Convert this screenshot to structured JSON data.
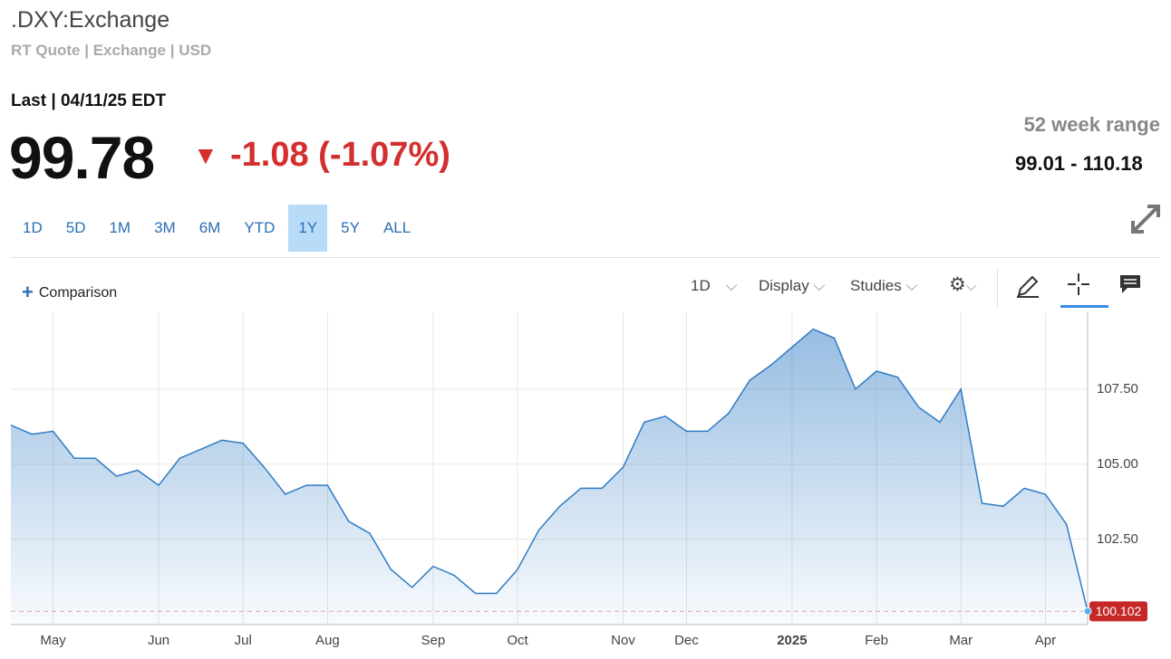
{
  "header": {
    "symbol": ".DXY:Exchange",
    "subtitle": "RT Quote | Exchange | USD",
    "last_label": "Last | 04/11/25 EDT",
    "price": "99.78",
    "change": "-1.08 (-1.07%)",
    "range_label": "52 week range",
    "range": "99.01 - 110.18"
  },
  "ranges": [
    "1D",
    "5D",
    "1M",
    "3M",
    "6M",
    "YTD",
    "1Y",
    "5Y",
    "ALL"
  ],
  "toolbar": {
    "comparison": "Comparison",
    "interval": "1D",
    "display": "Display",
    "studies": "Studies"
  },
  "chart_data": {
    "type": "area",
    "color": "#2f7bc4",
    "grid": true,
    "categories": [
      null,
      null,
      "May",
      null,
      null,
      null,
      null,
      "Jun",
      null,
      null,
      null,
      "Jul",
      null,
      null,
      null,
      "Aug",
      null,
      null,
      null,
      null,
      "Sep",
      null,
      null,
      null,
      "Oct",
      null,
      null,
      null,
      null,
      "Nov",
      null,
      null,
      "Dec",
      null,
      null,
      null,
      null,
      "2025",
      null,
      null,
      null,
      "Feb",
      null,
      null,
      null,
      "Mar",
      null,
      null,
      null,
      "Apr",
      null,
      null
    ],
    "values": [
      106.3,
      106.0,
      106.1,
      105.2,
      105.2,
      104.6,
      104.8,
      104.3,
      105.2,
      105.5,
      105.8,
      105.7,
      104.9,
      104.0,
      104.3,
      104.3,
      103.1,
      102.7,
      101.5,
      100.9,
      101.6,
      101.3,
      100.7,
      100.7,
      101.5,
      102.8,
      103.6,
      104.2,
      104.2,
      104.9,
      106.4,
      106.6,
      106.1,
      106.1,
      106.7,
      107.8,
      108.3,
      108.9,
      109.5,
      109.2,
      107.5,
      108.1,
      107.9,
      106.9,
      106.4,
      107.5,
      103.7,
      103.6,
      104.2,
      104.0,
      103.0,
      100.102
    ],
    "ylim": [
      99.66,
      110.06
    ],
    "yticks": [
      {
        "value": 102.5,
        "label": "102.50"
      },
      {
        "value": 105,
        "label": "105.00"
      },
      {
        "value": 107.5,
        "label": "107.50"
      }
    ]
  }
}
